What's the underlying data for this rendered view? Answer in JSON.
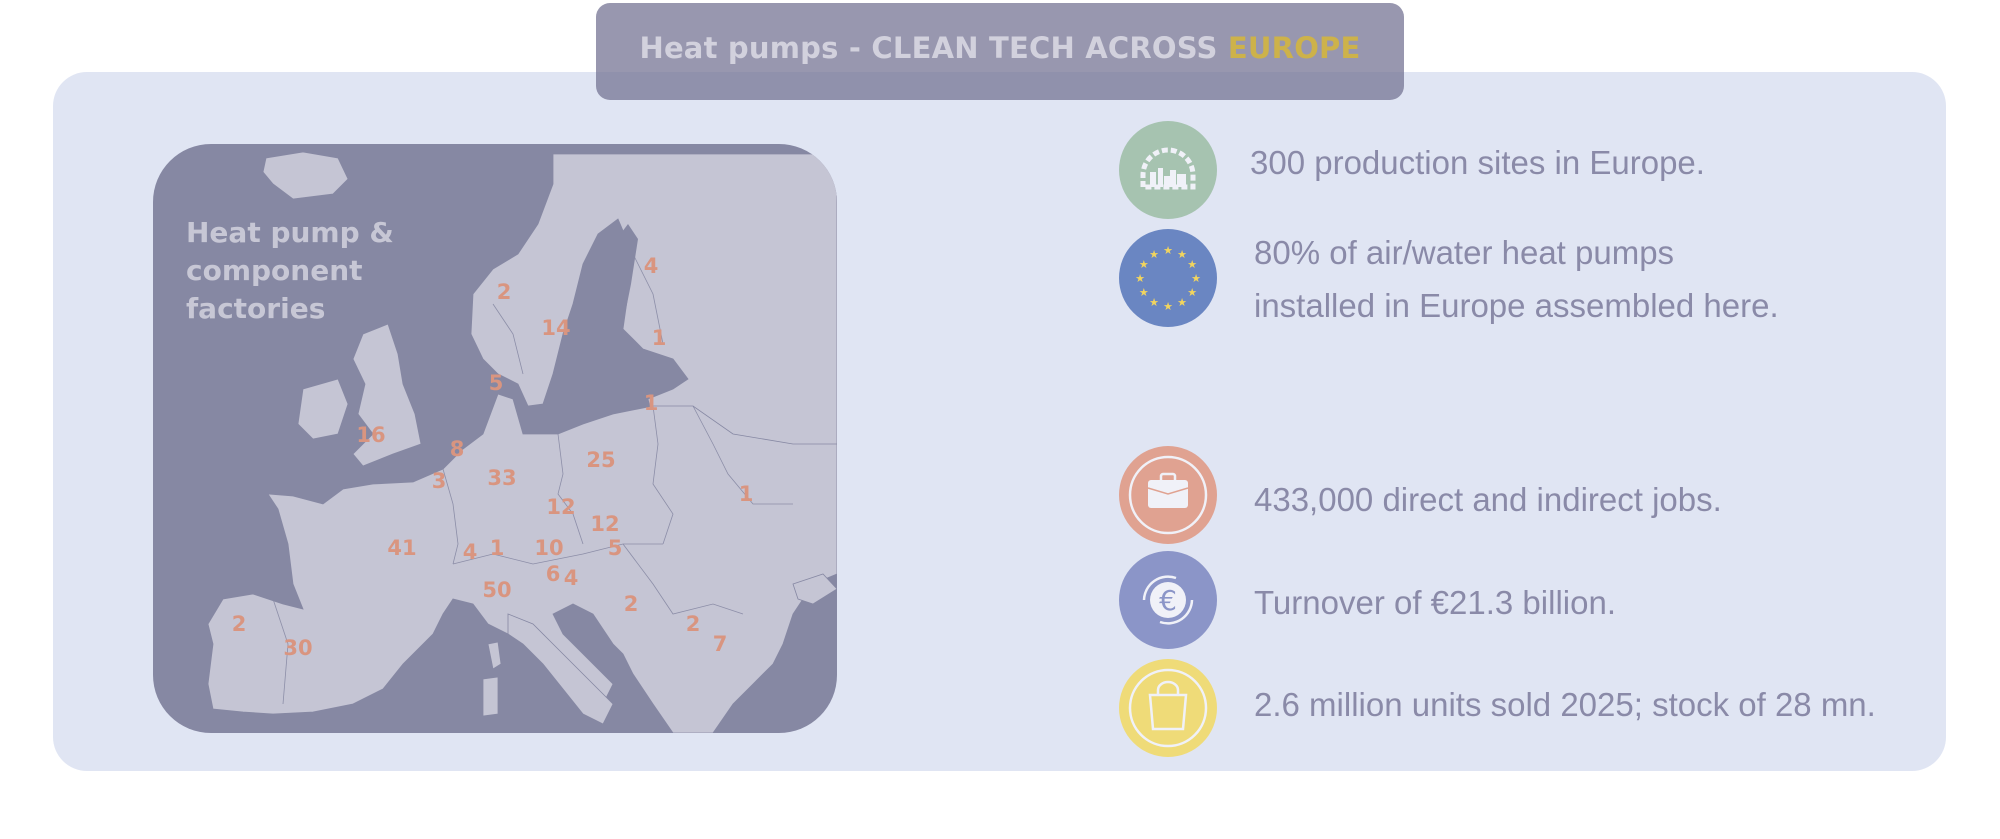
{
  "header": {
    "title_main": "Heat pumps - CLEAN TECH ACROSS ",
    "title_accent": "EUROPE",
    "accent_color": "#cdb24a"
  },
  "map": {
    "heading": "Heat pump & component factories",
    "label_color": "#d99580",
    "factory_counts": [
      {
        "country": "Finland",
        "value": "4"
      },
      {
        "country": "Norway",
        "value": "2"
      },
      {
        "country": "Sweden",
        "value": "14"
      },
      {
        "country": "Estonia",
        "value": "1"
      },
      {
        "country": "Denmark",
        "value": "5"
      },
      {
        "country": "Lithuania",
        "value": "1"
      },
      {
        "country": "United Kingdom",
        "value": "16"
      },
      {
        "country": "Netherlands",
        "value": "8"
      },
      {
        "country": "Poland",
        "value": "25"
      },
      {
        "country": "Germany",
        "value": "33"
      },
      {
        "country": "Belgium",
        "value": "3"
      },
      {
        "country": "Ukraine",
        "value": "1"
      },
      {
        "country": "Czechia",
        "value": "12"
      },
      {
        "country": "Slovakia",
        "value": "12"
      },
      {
        "country": "France",
        "value": "41"
      },
      {
        "country": "Switzerland",
        "value": "4"
      },
      {
        "country": "Liechtenstein",
        "value": "1"
      },
      {
        "country": "Austria",
        "value": "10"
      },
      {
        "country": "Hungary",
        "value": "5"
      },
      {
        "country": "Slovenia",
        "value": "6"
      },
      {
        "country": "Croatia",
        "value": "4"
      },
      {
        "country": "Italy",
        "value": "50"
      },
      {
        "country": "Serbia",
        "value": "2"
      },
      {
        "country": "Bulgaria",
        "value": "2"
      },
      {
        "country": "Turkey",
        "value": "7"
      },
      {
        "country": "Portugal",
        "value": "2"
      },
      {
        "country": "Spain",
        "value": "30"
      }
    ]
  },
  "stats": [
    {
      "icon": "factory-gear-icon",
      "color": "#a6c3b0",
      "lines": [
        "300 production sites in Europe."
      ]
    },
    {
      "icon": "eu-flag-icon",
      "color": "#6a86c2",
      "lines": [
        "80% of  air/water heat pumps",
        "installed in Europe assembled here."
      ]
    },
    {
      "icon": "briefcase-icon",
      "color": "#e0a291",
      "lines": [
        "433,000 direct and indirect jobs."
      ]
    },
    {
      "icon": "euro-cycle-icon",
      "color": "#8b95c8",
      "lines": [
        "Turnover of €21.3 billion."
      ]
    },
    {
      "icon": "shopping-bag-icon",
      "color": "#efdb78",
      "lines": [
        "2.6 million units sold 2025; stock of 28 mn."
      ]
    }
  ]
}
